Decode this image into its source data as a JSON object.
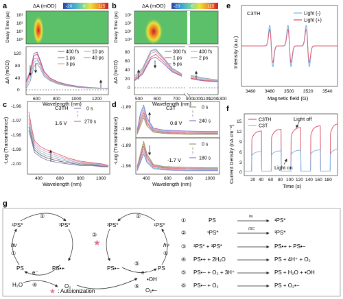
{
  "colors": {
    "purple": "#7b6cc4",
    "red": "#d9566a",
    "pink": "#ec8fa0",
    "lightblue": "#7cb6e8",
    "gray": "#9a9a9a",
    "dark": "#555555",
    "olive": "#9c8a4a",
    "star": "#e07090"
  },
  "chart_data": [
    {
      "panel": "a",
      "type": "line",
      "colorbar": {
        "title": "ΔA (mOD)",
        "ticks": [
          "-20",
          "0",
          "115"
        ]
      },
      "heatmap_ylabel": "Dealy Time (ps)",
      "heatmap_yticks": [
        "10³",
        "10²",
        "10¹",
        "10⁰"
      ],
      "xlabel": "Wavelength (nm)",
      "ylabel": "ΔA (mOD)",
      "xticks": [
        "600",
        "800",
        "1000",
        "1200"
      ],
      "yticks": [
        "0",
        "40",
        "80",
        "120"
      ],
      "xlim": [
        480,
        1300
      ],
      "ylim": [
        -10,
        135
      ],
      "legend": [
        "400 fs",
        "1 ps",
        "3 ps",
        "10 ps",
        "40 ps"
      ],
      "x": [
        480,
        520,
        560,
        590,
        620,
        660,
        720,
        800,
        900,
        1000,
        1100,
        1200,
        1300
      ],
      "series": [
        {
          "name": "400 fs",
          "values": [
            30,
            60,
            115,
            118,
            95,
            60,
            40,
            28,
            20,
            15,
            12,
            10,
            8
          ]
        },
        {
          "name": "1 ps",
          "values": [
            28,
            55,
            108,
            112,
            90,
            58,
            39,
            27,
            19,
            14,
            11,
            9,
            8
          ]
        },
        {
          "name": "3 ps",
          "values": [
            22,
            50,
            98,
            100,
            82,
            52,
            36,
            25,
            18,
            13,
            11,
            9,
            8
          ]
        },
        {
          "name": "10 ps",
          "values": [
            15,
            40,
            88,
            95,
            78,
            50,
            34,
            24,
            17,
            13,
            10,
            9,
            8
          ]
        },
        {
          "name": "40 ps",
          "values": [
            8,
            30,
            75,
            85,
            70,
            45,
            32,
            22,
            16,
            12,
            10,
            9,
            8
          ]
        }
      ]
    },
    {
      "panel": "b",
      "type": "line",
      "colorbar": {
        "title": "ΔA (mOD)",
        "ticks": [
          "-20",
          "0",
          "115"
        ]
      },
      "heatmap_ylabel": "Dealy Time (ps)",
      "heatmap_yticks": [
        "10³",
        "10²",
        "10¹",
        "10⁰"
      ],
      "xlabel": "Wavelength (nm)",
      "ylabel": "ΔA (mOD)",
      "xticks": [
        "500",
        "600",
        "700",
        "900",
        "1000",
        "1100",
        "1200",
        "1300"
      ],
      "yticks": [
        "0",
        "20",
        "40",
        "60",
        "80"
      ],
      "ylim": [
        -10,
        95
      ],
      "legend": [
        "300 fs",
        "400 fs",
        "1 ps",
        "2 ps",
        "5 ps"
      ],
      "x": [
        450,
        500,
        550,
        580,
        620,
        680,
        740,
        900,
        1000,
        1100,
        1200,
        1300
      ],
      "series": [
        {
          "name": "300 fs",
          "values": [
            20,
            35,
            68,
            72,
            60,
            40,
            30,
            25,
            22,
            20,
            19,
            18
          ]
        },
        {
          "name": "400 fs",
          "values": [
            22,
            38,
            72,
            78,
            65,
            42,
            31,
            26,
            23,
            21,
            20,
            19
          ]
        },
        {
          "name": "1 ps",
          "values": [
            24,
            42,
            80,
            84,
            70,
            45,
            33,
            28,
            25,
            22,
            21,
            20
          ]
        },
        {
          "name": "2 ps",
          "values": [
            26,
            45,
            84,
            88,
            72,
            46,
            34,
            30,
            27,
            24,
            22,
            21
          ]
        },
        {
          "name": "5 ps",
          "values": [
            30,
            48,
            86,
            90,
            74,
            48,
            35,
            32,
            29,
            26,
            24,
            22
          ]
        }
      ]
    },
    {
      "panel": "c",
      "type": "line",
      "sample": "C3TH",
      "voltage": "1.6 V",
      "xlabel": "Wavelength (nm)",
      "ylabel": "-Log (Transmittance)",
      "xticks": [
        "400",
        "600",
        "800",
        "1000"
      ],
      "yticks": [
        "-1.96",
        "-1.97",
        "-1.98",
        "-1.99",
        "-2.00"
      ],
      "ylim": [
        -2.005,
        -1.955
      ],
      "legend": [
        "0 s",
        "270 s"
      ],
      "x": [
        350,
        380,
        400,
        450,
        500,
        600,
        700,
        800,
        900,
        1000,
        1050
      ],
      "series": [
        {
          "name": "0 s",
          "values": [
            -1.975,
            -1.984,
            -1.99,
            -1.993,
            -1.995,
            -1.997,
            -1.998,
            -1.999,
            -1.999,
            -2.0,
            -2.0
          ]
        },
        {
          "name": "270 s",
          "values": [
            -1.962,
            -1.975,
            -1.982,
            -1.986,
            -1.988,
            -1.991,
            -1.994,
            -1.996,
            -1.997,
            -1.998,
            -1.999
          ]
        }
      ]
    },
    {
      "panel": "d",
      "type": "line",
      "sample": "C3T",
      "voltages": [
        "0.8 V",
        "-1.7 V"
      ],
      "xlabel": "Wavelength (nm)",
      "ylabel": "-Log (Transmittance)",
      "xticks": [
        "400",
        "600",
        "800",
        "1000"
      ],
      "yticks_top": [
        "-1.89",
        "-1.96"
      ],
      "yticks_bottom": [
        "-1.89",
        "-1.96"
      ],
      "legend_top": [
        "0 s",
        "240 s"
      ],
      "legend_bottom": [
        "0 s",
        "180 s"
      ],
      "x": [
        350,
        380,
        410,
        440,
        500,
        600,
        800,
        1000,
        1100
      ],
      "series_top": [
        {
          "name": "0 s",
          "values": [
            -1.96,
            -1.94,
            -1.92,
            -1.94,
            -1.955,
            -1.958,
            -1.96,
            -1.96,
            -1.96
          ]
        },
        {
          "name": "240 s",
          "values": [
            -1.95,
            -1.91,
            -1.89,
            -1.92,
            -1.945,
            -1.95,
            -1.952,
            -1.953,
            -1.953
          ]
        }
      ],
      "series_bottom": [
        {
          "name": "0 s",
          "values": [
            -1.95,
            -1.92,
            -1.89,
            -1.92,
            -1.945,
            -1.95,
            -1.952,
            -1.953,
            -1.953
          ]
        },
        {
          "name": "180 s",
          "values": [
            -1.96,
            -1.94,
            -1.92,
            -1.94,
            -1.955,
            -1.958,
            -1.96,
            -1.96,
            -1.96
          ]
        }
      ]
    },
    {
      "panel": "e",
      "type": "line",
      "sample": "C3TH",
      "xlabel": "Magnetic field  (G)",
      "ylabel": "Intensity (a.u.)",
      "xticks": [
        "3460",
        "3480",
        "3500",
        "3520",
        "3540"
      ],
      "xlim": [
        3450,
        3550
      ],
      "legend": [
        "Light (-)",
        "Light (+)"
      ],
      "peak_centers_G": [
        3481,
        3500,
        3519
      ]
    },
    {
      "panel": "f",
      "type": "line",
      "xlabel": "Time (s)",
      "ylabel": "Current Density (nA cm⁻²)",
      "xticks": [
        "20",
        "40",
        "60",
        "80",
        "100",
        "120",
        "140",
        "160",
        "180"
      ],
      "yticks": [
        "0",
        "3",
        "6",
        "9",
        "12",
        "15"
      ],
      "xlim": [
        5,
        195
      ],
      "ylim": [
        -1,
        17
      ],
      "legend": [
        "C3TH",
        "C3T"
      ],
      "annotations": [
        "Light off",
        "Light on"
      ],
      "cycles": [
        {
          "on": 20,
          "off": 40
        },
        {
          "on": 60,
          "off": 80
        },
        {
          "on": 100,
          "off": 120
        },
        {
          "on": 140,
          "off": 160
        },
        {
          "on": 180,
          "off": 195
        }
      ],
      "series": [
        {
          "name": "C3TH",
          "peak_values": [
            12,
            12.5,
            13,
            13.5,
            14
          ]
        },
        {
          "name": "C3T",
          "peak_values": [
            6,
            6.2,
            6.4,
            6.5,
            6.6
          ]
        }
      ]
    }
  ],
  "panels": {
    "a": "a",
    "b": "b",
    "c": "c",
    "d": "d",
    "e": "e",
    "f": "f",
    "g": "g"
  },
  "mechanism": {
    "step_numbers": [
      "①",
      "②",
      "③",
      "④",
      "⑤",
      "⑥"
    ],
    "left_cycle": {
      "ps": "PS",
      "singlet": "¹PS*",
      "triplet": "³PS*",
      "radical_cation": "PS•+",
      "hv": "hν",
      "e": "e⁻",
      "water": "H₂O"
    },
    "right_cycle": {
      "singlet": "¹PS*",
      "triplet": "³PS*",
      "ps": "PS",
      "radical_anion": "PS•−",
      "radical_cation": "PS•+",
      "hv": "hν",
      "o2": "O₂",
      "e": "e⁻",
      "oh": "•OH",
      "superoxide": "O₂•−"
    },
    "autoionization_label": ": Autoionization",
    "reactions": [
      {
        "num": "①",
        "lhs": "PS",
        "arrow": "hν",
        "rhs": "¹PS*"
      },
      {
        "num": "②",
        "lhs": "¹PS*",
        "arrow": "ISC",
        "rhs": "³PS*"
      },
      {
        "num": "③",
        "lhs": "³PS* + ³PS*",
        "arrow": "",
        "rhs": "PS•+ + PS•−"
      },
      {
        "num": "④",
        "lhs": "PS•+ + 2H₂O",
        "arrow": "",
        "rhs": "PS + 4H⁺ + O₂"
      },
      {
        "num": "⑤",
        "lhs": "PS•− + O₂ + 3H⁺",
        "arrow": "",
        "rhs": "PS + H₂O + •OH"
      },
      {
        "num": "⑥",
        "lhs": "PS•− + O₂",
        "arrow": "",
        "rhs": "PS + O₂•−"
      }
    ]
  }
}
